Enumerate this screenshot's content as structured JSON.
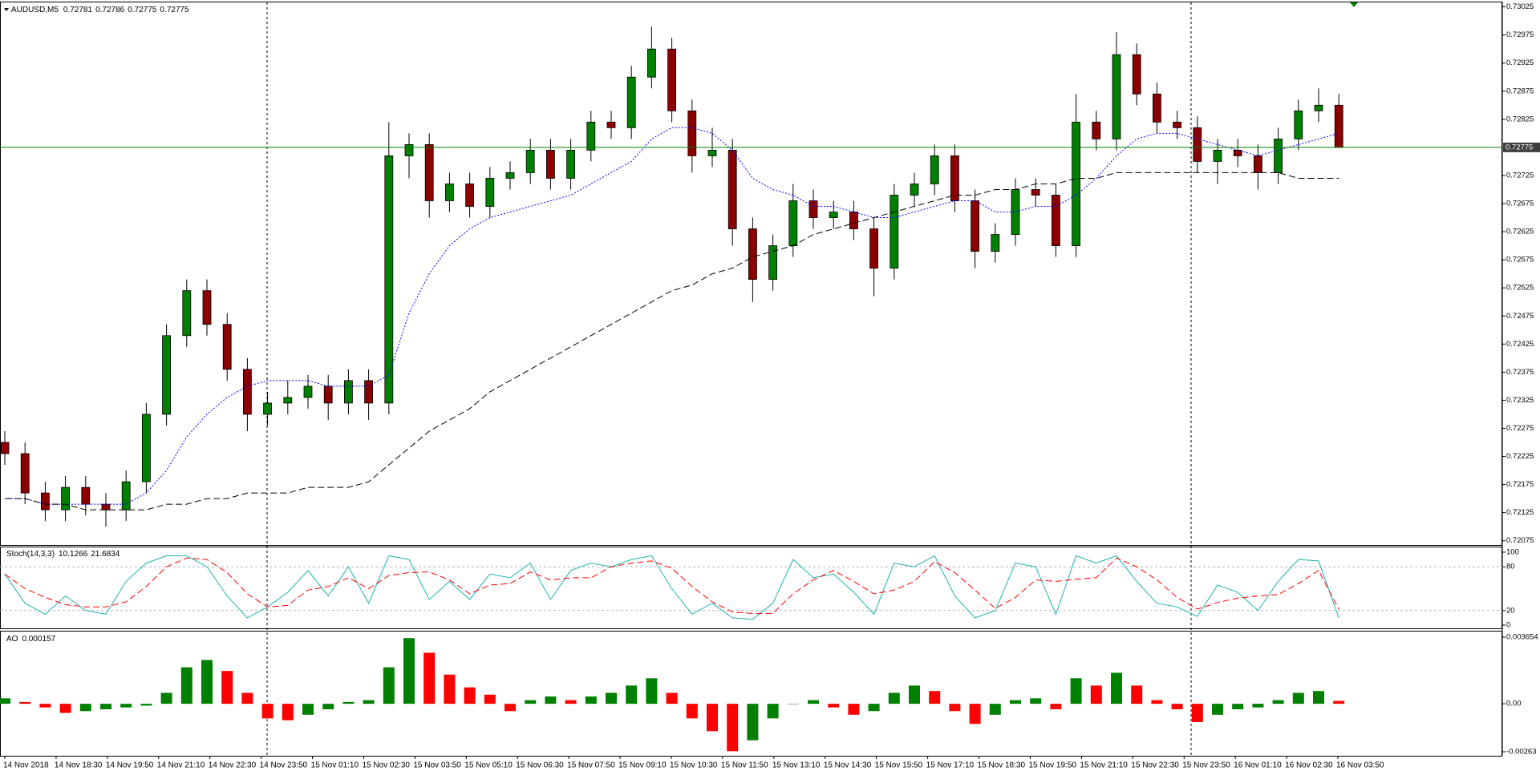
{
  "chart_data": [
    {
      "type": "candlestick",
      "title": "AUDUSD,M5",
      "ohlc_readout": [
        0.72781,
        0.72786,
        0.72775,
        0.72775
      ],
      "ylim": [
        0.72075,
        0.73025
      ],
      "yticks": [
        0.73025,
        0.72975,
        0.72925,
        0.72875,
        0.72825,
        0.72725,
        0.72675,
        0.72625,
        0.72575,
        0.72525,
        0.72475,
        0.72425,
        0.72375,
        0.72325,
        0.72275,
        0.72225,
        0.72175,
        0.72125,
        0.72075
      ],
      "current_price": 0.72775,
      "current_color": "#008000",
      "up_color": "#008000",
      "down_color": "#8b0000",
      "x_labels": [
        "14 Nov 2018",
        "14 Nov 18:30",
        "14 Nov 19:50",
        "14 Nov 21:10",
        "14 Nov 22:30",
        "14 Nov 23:50",
        "15 Nov 01:10",
        "15 Nov 02:30",
        "15 Nov 03:50",
        "15 Nov 05:10",
        "15 Nov 06:30",
        "15 Nov 07:50",
        "15 Nov 09:10",
        "15 Nov 10:30",
        "15 Nov 11:50",
        "15 Nov 13:10",
        "15 Nov 14:30",
        "15 Nov 15:50",
        "15 Nov 17:10",
        "15 Nov 18:30",
        "15 Nov 19:50",
        "15 Nov 21:10",
        "15 Nov 22:30",
        "15 Nov 23:50",
        "16 Nov 01:10",
        "16 Nov 02:30",
        "16 Nov 03:50"
      ],
      "candles": [
        [
          0.7225,
          0.7227,
          0.7221,
          0.7223
        ],
        [
          0.7223,
          0.7225,
          0.7214,
          0.7216
        ],
        [
          0.7216,
          0.7218,
          0.7211,
          0.7213
        ],
        [
          0.7213,
          0.7219,
          0.7211,
          0.7217
        ],
        [
          0.7217,
          0.7219,
          0.7212,
          0.7214
        ],
        [
          0.7214,
          0.7216,
          0.721,
          0.7213
        ],
        [
          0.7213,
          0.722,
          0.7211,
          0.7218
        ],
        [
          0.7218,
          0.7232,
          0.7216,
          0.723
        ],
        [
          0.723,
          0.7246,
          0.7228,
          0.7244
        ],
        [
          0.7244,
          0.7254,
          0.7242,
          0.7252
        ],
        [
          0.7252,
          0.7254,
          0.7244,
          0.7246
        ],
        [
          0.7246,
          0.7248,
          0.7236,
          0.7238
        ],
        [
          0.7238,
          0.724,
          0.7227,
          0.723
        ],
        [
          0.723,
          0.7234,
          0.7228,
          0.7232
        ],
        [
          0.7232,
          0.7236,
          0.723,
          0.7233
        ],
        [
          0.7233,
          0.7237,
          0.7231,
          0.7235
        ],
        [
          0.7235,
          0.7237,
          0.7229,
          0.7232
        ],
        [
          0.7232,
          0.7238,
          0.723,
          0.7236
        ],
        [
          0.7236,
          0.7238,
          0.7229,
          0.7232
        ],
        [
          0.7232,
          0.7282,
          0.723,
          0.7276
        ],
        [
          0.7276,
          0.728,
          0.7272,
          0.7278
        ],
        [
          0.7278,
          0.728,
          0.7265,
          0.7268
        ],
        [
          0.7268,
          0.7273,
          0.7266,
          0.7271
        ],
        [
          0.7271,
          0.7273,
          0.7265,
          0.7267
        ],
        [
          0.7267,
          0.7274,
          0.7265,
          0.7272
        ],
        [
          0.7272,
          0.7275,
          0.727,
          0.7273
        ],
        [
          0.7273,
          0.7279,
          0.7271,
          0.7277
        ],
        [
          0.7277,
          0.7279,
          0.727,
          0.7272
        ],
        [
          0.7272,
          0.7279,
          0.727,
          0.7277
        ],
        [
          0.7277,
          0.7284,
          0.7275,
          0.7282
        ],
        [
          0.7282,
          0.7284,
          0.7279,
          0.7281
        ],
        [
          0.7281,
          0.7292,
          0.7279,
          0.729
        ],
        [
          0.729,
          0.7299,
          0.7288,
          0.7295
        ],
        [
          0.7295,
          0.7297,
          0.7282,
          0.7284
        ],
        [
          0.7284,
          0.7286,
          0.7273,
          0.7276
        ],
        [
          0.7276,
          0.7281,
          0.7274,
          0.7277
        ],
        [
          0.7277,
          0.7279,
          0.726,
          0.7263
        ],
        [
          0.7263,
          0.7265,
          0.725,
          0.7254
        ],
        [
          0.7254,
          0.7262,
          0.7252,
          0.726
        ],
        [
          0.726,
          0.7271,
          0.7258,
          0.7268
        ],
        [
          0.7268,
          0.727,
          0.7263,
          0.7265
        ],
        [
          0.7265,
          0.7268,
          0.7263,
          0.7266
        ],
        [
          0.7266,
          0.7268,
          0.7261,
          0.7263
        ],
        [
          0.7263,
          0.7265,
          0.7251,
          0.7256
        ],
        [
          0.7256,
          0.7271,
          0.7254,
          0.7269
        ],
        [
          0.7269,
          0.7273,
          0.7267,
          0.7271
        ],
        [
          0.7271,
          0.7278,
          0.7269,
          0.7276
        ],
        [
          0.7276,
          0.7278,
          0.7266,
          0.7268
        ],
        [
          0.7268,
          0.727,
          0.7256,
          0.7259
        ],
        [
          0.7259,
          0.7264,
          0.7257,
          0.7262
        ],
        [
          0.7262,
          0.7272,
          0.726,
          0.727
        ],
        [
          0.727,
          0.7272,
          0.7267,
          0.7269
        ],
        [
          0.7269,
          0.7271,
          0.7258,
          0.726
        ],
        [
          0.726,
          0.7287,
          0.7258,
          0.7282
        ],
        [
          0.7282,
          0.7284,
          0.7277,
          0.7279
        ],
        [
          0.7279,
          0.7298,
          0.7277,
          0.7294
        ],
        [
          0.7294,
          0.7296,
          0.7285,
          0.7287
        ],
        [
          0.7287,
          0.7289,
          0.728,
          0.7282
        ],
        [
          0.7282,
          0.7284,
          0.7279,
          0.7281
        ],
        [
          0.7281,
          0.7283,
          0.7273,
          0.7275
        ],
        [
          0.7275,
          0.7279,
          0.7271,
          0.7277
        ],
        [
          0.7277,
          0.7279,
          0.7274,
          0.7276
        ],
        [
          0.7276,
          0.7278,
          0.727,
          0.7273
        ],
        [
          0.7273,
          0.7281,
          0.7271,
          0.7279
        ],
        [
          0.7279,
          0.7286,
          0.7277,
          0.7284
        ],
        [
          0.7284,
          0.7288,
          0.7282,
          0.7285
        ],
        [
          0.7285,
          0.7287,
          0.72775,
          0.72775
        ]
      ],
      "series": [
        {
          "color": "#0000ff",
          "dash": "dotted",
          "values": [
            0.7215,
            0.7215,
            0.7214,
            0.7214,
            0.7214,
            0.7214,
            0.7214,
            0.7216,
            0.722,
            0.7226,
            0.723,
            0.7233,
            0.7235,
            0.7236,
            0.7236,
            0.7236,
            0.7235,
            0.7235,
            0.7235,
            0.7237,
            0.7248,
            0.7255,
            0.726,
            0.7263,
            0.7265,
            0.7266,
            0.7267,
            0.7268,
            0.7269,
            0.7271,
            0.7273,
            0.7275,
            0.7279,
            0.7281,
            0.7281,
            0.728,
            0.7277,
            0.7272,
            0.727,
            0.7269,
            0.7267,
            0.7267,
            0.7266,
            0.7265,
            0.7265,
            0.7266,
            0.7267,
            0.7268,
            0.7268,
            0.7266,
            0.7266,
            0.7267,
            0.7267,
            0.7269,
            0.7272,
            0.7276,
            0.7279,
            0.728,
            0.728,
            0.7279,
            0.7278,
            0.7277,
            0.7276,
            0.7277,
            0.7278,
            0.7279,
            0.728
          ]
        },
        {
          "color": "#000000",
          "dash": "dashed",
          "values": [
            0.7215,
            0.7215,
            0.7214,
            0.7214,
            0.7213,
            0.7213,
            0.7213,
            0.7213,
            0.7214,
            0.7214,
            0.7215,
            0.7215,
            0.7216,
            0.7216,
            0.7216,
            0.7217,
            0.7217,
            0.7217,
            0.7218,
            0.7221,
            0.7224,
            0.7227,
            0.7229,
            0.7231,
            0.7234,
            0.7236,
            0.7238,
            0.724,
            0.7242,
            0.7244,
            0.7246,
            0.7248,
            0.725,
            0.7252,
            0.7253,
            0.7255,
            0.7256,
            0.7258,
            0.7259,
            0.726,
            0.7262,
            0.7263,
            0.7264,
            0.7265,
            0.7266,
            0.7267,
            0.7268,
            0.7269,
            0.7269,
            0.727,
            0.727,
            0.7271,
            0.7271,
            0.7272,
            0.7272,
            0.7273,
            0.7273,
            0.7273,
            0.7273,
            0.7273,
            0.7273,
            0.7273,
            0.7273,
            0.7273,
            0.7272,
            0.7272,
            0.7272
          ]
        }
      ]
    },
    {
      "type": "line",
      "title": "Stoch(14,3,3)",
      "readout": [
        10.1266,
        21.6834
      ],
      "ylim": [
        0,
        100
      ],
      "yticks": [
        100,
        80,
        20,
        0
      ],
      "levels": [
        80,
        20
      ],
      "series": [
        {
          "color": "#20b2aa",
          "dash": "solid",
          "values": [
            70,
            30,
            15,
            40,
            20,
            15,
            60,
            85,
            95,
            95,
            80,
            40,
            10,
            25,
            45,
            75,
            40,
            80,
            30,
            95,
            90,
            35,
            60,
            35,
            70,
            65,
            85,
            35,
            75,
            85,
            80,
            90,
            95,
            50,
            15,
            30,
            10,
            8,
            30,
            90,
            65,
            70,
            45,
            15,
            85,
            80,
            95,
            40,
            10,
            20,
            85,
            80,
            15,
            95,
            85,
            95,
            60,
            30,
            25,
            12,
            55,
            45,
            20,
            60,
            90,
            88,
            10.1266
          ]
        },
        {
          "color": "#ff0000",
          "dash": "dashed",
          "values": [
            70,
            50,
            38,
            28,
            25,
            25,
            32,
            53,
            80,
            92,
            90,
            72,
            43,
            25,
            27,
            48,
            53,
            65,
            50,
            68,
            72,
            73,
            62,
            43,
            55,
            57,
            73,
            62,
            65,
            65,
            80,
            85,
            88,
            78,
            53,
            32,
            18,
            16,
            16,
            43,
            62,
            75,
            60,
            43,
            48,
            60,
            87,
            72,
            48,
            23,
            38,
            62,
            60,
            63,
            65,
            92,
            80,
            62,
            38,
            22,
            31,
            37,
            40,
            42,
            57,
            75,
            21.6834
          ]
        }
      ]
    },
    {
      "type": "bar",
      "title": "AO",
      "readout": [
        0.000157
      ],
      "ylim": [
        -0.00263,
        0.003654
      ],
      "yticks": [
        0.003654,
        {
          "value": 0,
          "label": "0.00"
        },
        -0.00263
      ],
      "up_color": "#008000",
      "down_color": "#ff0000",
      "values": [
        0.0003,
        0.0001,
        -0.0002,
        -0.0005,
        -0.0004,
        -0.0003,
        -0.0002,
        -0.0001,
        0.0006,
        0.002,
        0.0024,
        0.0018,
        0.0006,
        -0.0008,
        -0.0009,
        -0.0006,
        -0.0003,
        0.0001,
        0.0002,
        0.002,
        0.0036,
        0.0028,
        0.0016,
        0.0009,
        0.0005,
        -0.0004,
        0.0002,
        0.0004,
        0.0002,
        0.0004,
        0.0006,
        0.001,
        0.0014,
        0.0006,
        -0.0008,
        -0.0015,
        -0.0026,
        -0.002,
        -0.0008,
        0,
        0.0002,
        -0.0002,
        -0.0006,
        -0.0004,
        0.0006,
        0.001,
        0.0007,
        -0.0004,
        -0.0011,
        -0.0006,
        0.0002,
        0.0003,
        -0.0003,
        0.0014,
        0.001,
        0.0017,
        0.001,
        0.0002,
        -0.0003,
        -0.001,
        -0.0006,
        -0.0003,
        -0.0002,
        0.0002,
        0.0006,
        0.0007,
        0.000157
      ]
    }
  ]
}
